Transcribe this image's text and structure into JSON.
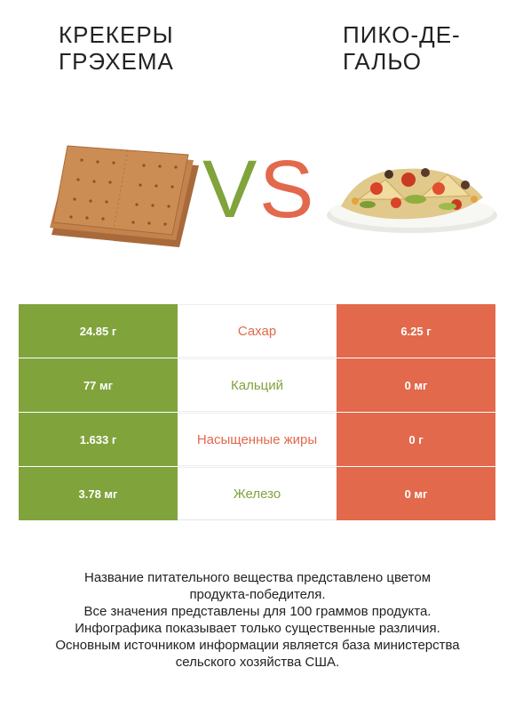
{
  "header": {
    "left_title": "Крекеры грэхема",
    "right_title": "Пико-де-гальо",
    "vs_left": "V",
    "vs_right": "S"
  },
  "colors": {
    "left_accent": "#80a33c",
    "right_accent": "#e2694c"
  },
  "rows": [
    {
      "left": "24.85 г",
      "label": "Сахар",
      "right": "6.25 г",
      "winner": "right"
    },
    {
      "left": "77 мг",
      "label": "Кальций",
      "right": "0 мг",
      "winner": "left"
    },
    {
      "left": "1.633 г",
      "label": "Насыщенные жиры",
      "right": "0 г",
      "winner": "right"
    },
    {
      "left": "3.78 мг",
      "label": "Железо",
      "right": "0 мг",
      "winner": "left"
    }
  ],
  "footer": {
    "line1": "Название питательного вещества представлено цветом",
    "line2": "продукта-победителя.",
    "line3": "Все значения представлены для 100 граммов продукта.",
    "line4": "Инфографика показывает только существенные различия.",
    "line5": "Основным источником информации является база министерства",
    "line6": "сельского хозяйства США."
  }
}
